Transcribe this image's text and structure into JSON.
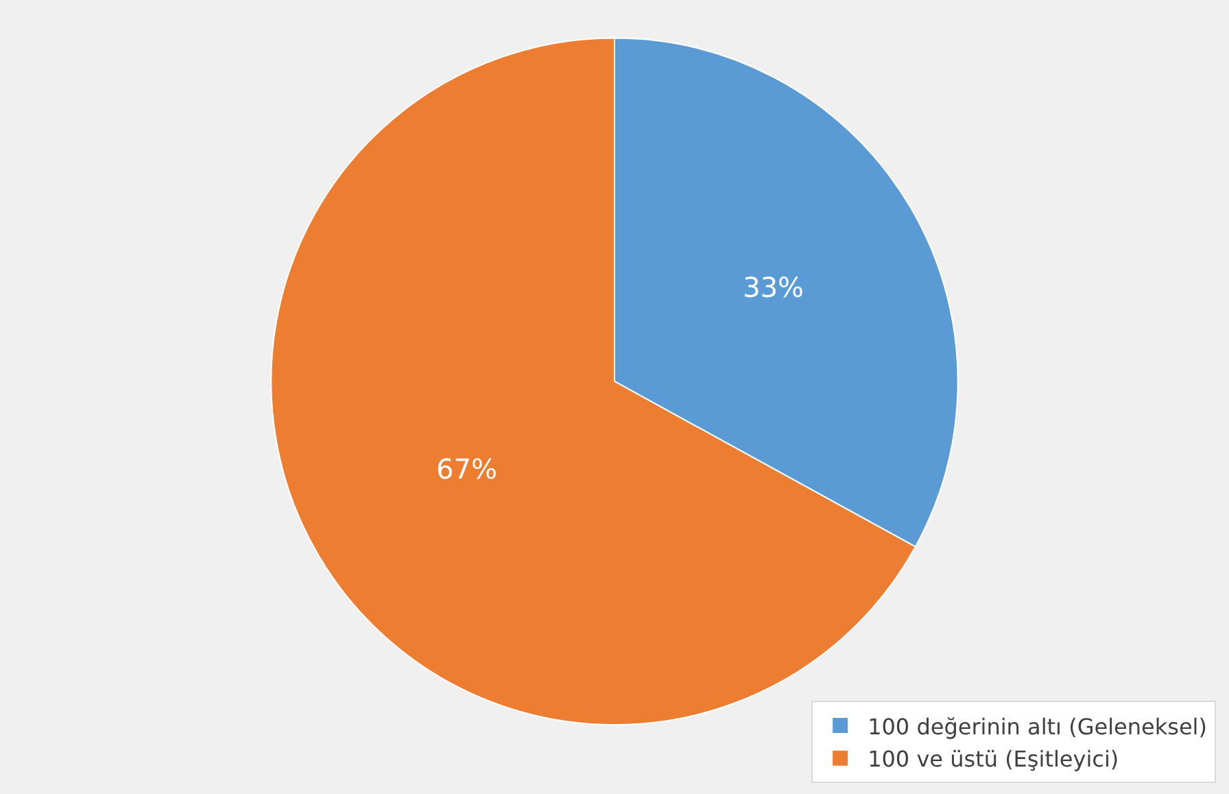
{
  "chart_data": {
    "type": "pie",
    "categories": [
      "100 değerinin altı (Geleneksel)",
      "100 ve üstü (Eşitleyici)"
    ],
    "values": [
      33,
      67
    ],
    "colors": [
      "#5b9bd5",
      "#ed7d31"
    ],
    "value_labels": [
      "33%",
      "67%"
    ],
    "legend": "bottom right"
  }
}
